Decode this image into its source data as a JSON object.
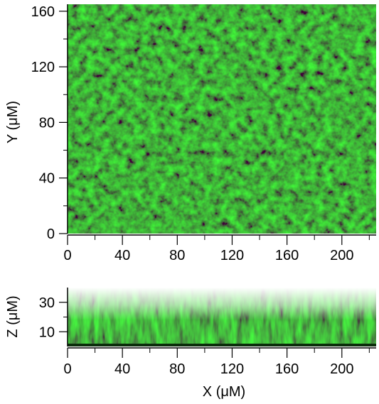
{
  "top_panel": {
    "y_axis": {
      "label": "Y (μM)",
      "ticks": [
        "0",
        "40",
        "80",
        "120",
        "160"
      ],
      "range": [
        0,
        165
      ]
    },
    "x_axis": {
      "ticks": [
        "0",
        "40",
        "80",
        "120",
        "160",
        "200"
      ],
      "range": [
        0,
        225
      ]
    }
  },
  "bottom_panel": {
    "z_axis": {
      "label": "Z (μM)",
      "ticks": [
        "10",
        "30"
      ],
      "range": [
        0,
        40
      ]
    },
    "x_axis": {
      "label": "X (μM)",
      "ticks": [
        "0",
        "40",
        "80",
        "120",
        "160",
        "200"
      ],
      "range": [
        0,
        225
      ]
    }
  },
  "colors": {
    "signal": "#22c21f",
    "dark": "#0a2c0a",
    "background": "#ffffff",
    "axis": "#000000"
  }
}
